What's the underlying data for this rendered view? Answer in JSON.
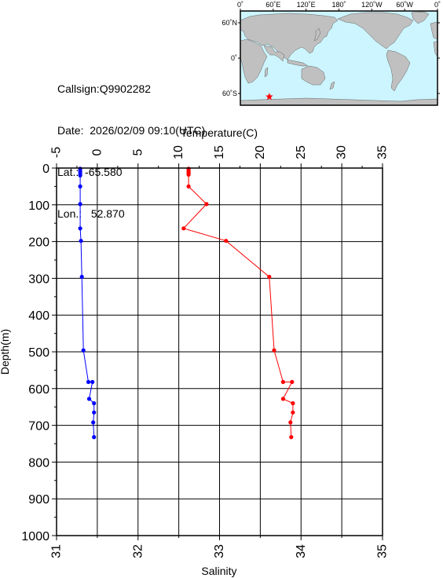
{
  "info": {
    "callsign_label": "Callsign:",
    "callsign": "Q9902282",
    "date_label": "Date:",
    "date": "2026/02/09 09:10(UTC)",
    "lat_label": "Lat.:",
    "lat": "-65.580",
    "lon_label": "Lon.:",
    "lon": "52.870"
  },
  "map": {
    "lon_ticks": [
      "0˚",
      "60˚E",
      "120˚E",
      "180˚",
      "120˚W",
      "60˚W",
      "0˚"
    ],
    "lat_ticks": [
      "60˚N",
      "0˚",
      "60˚S"
    ],
    "ocean_color": "#ccf5ff",
    "land_color": "#c0c0c0",
    "marker_color": "#ff0000",
    "marker_lon": 52.87,
    "marker_lat": -65.58
  },
  "chart_data": {
    "type": "line",
    "top_axis_label": "Temperature(C)",
    "bottom_axis_label": "Salinity",
    "ylabel": "Depth(m)",
    "temperature_range": [
      -5,
      35
    ],
    "salinity_range": [
      31,
      35
    ],
    "depth_range": [
      0,
      1000
    ],
    "temperature_ticks": [
      "-5",
      "0",
      "5",
      "10",
      "15",
      "20",
      "25",
      "30",
      "35"
    ],
    "salinity_ticks": [
      "31",
      "32",
      "33",
      "34",
      "35"
    ],
    "depth_ticks": [
      "0",
      "100",
      "200",
      "300",
      "400",
      "500",
      "600",
      "700",
      "800",
      "900",
      "1000"
    ],
    "grid": true,
    "series": [
      {
        "name": "Temperature",
        "axis": "temperature",
        "color": "#ff0000",
        "points": [
          [
            11.2,
            2
          ],
          [
            11.2,
            6
          ],
          [
            11.2,
            10
          ],
          [
            11.2,
            14
          ],
          [
            11.2,
            18
          ],
          [
            11.2,
            50
          ],
          [
            13.4,
            98
          ],
          [
            10.6,
            164
          ],
          [
            15.8,
            198
          ],
          [
            21.1,
            296
          ],
          [
            21.7,
            496
          ],
          [
            22.8,
            582
          ],
          [
            23.9,
            582
          ],
          [
            22.8,
            628
          ],
          [
            24.0,
            640
          ],
          [
            24.0,
            665
          ],
          [
            23.7,
            692
          ],
          [
            23.8,
            732
          ]
        ]
      },
      {
        "name": "Salinity",
        "axis": "salinity",
        "color": "#0000ff",
        "points": [
          [
            31.29,
            2
          ],
          [
            31.29,
            8
          ],
          [
            31.29,
            14
          ],
          [
            31.29,
            20
          ],
          [
            31.29,
            50
          ],
          [
            31.29,
            98
          ],
          [
            31.29,
            164
          ],
          [
            31.3,
            198
          ],
          [
            31.31,
            296
          ],
          [
            31.33,
            496
          ],
          [
            31.39,
            582
          ],
          [
            31.44,
            582
          ],
          [
            31.4,
            628
          ],
          [
            31.46,
            640
          ],
          [
            31.46,
            665
          ],
          [
            31.45,
            692
          ],
          [
            31.46,
            732
          ]
        ]
      }
    ]
  }
}
